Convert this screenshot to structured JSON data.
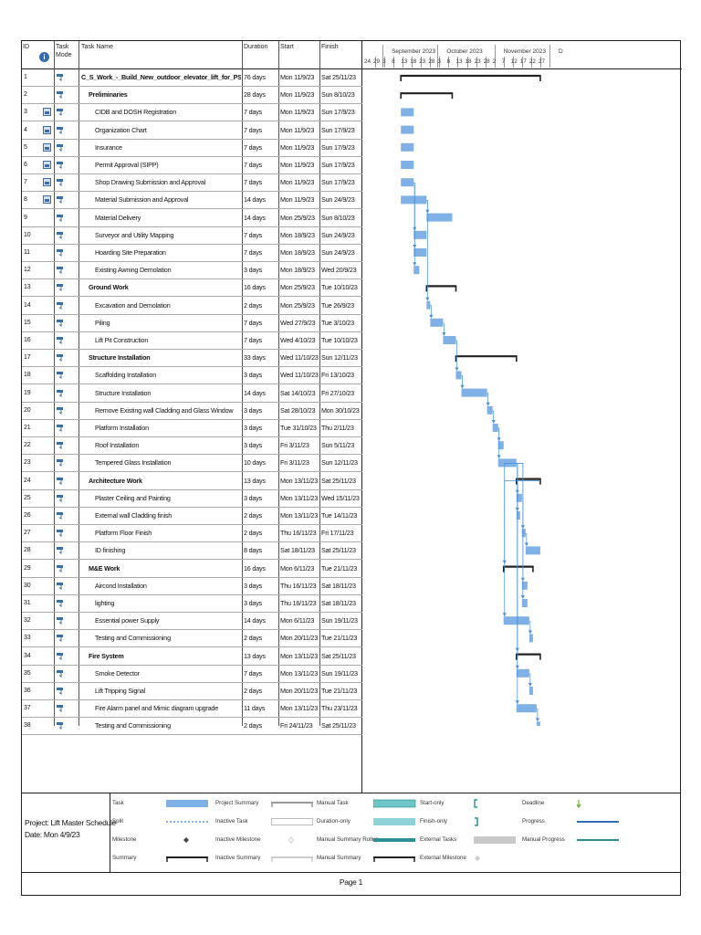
{
  "header": {
    "id": "ID",
    "task_mode": "Task Mode",
    "task_name": "Task Name",
    "duration": "Duration",
    "start": "Start",
    "finish": "Finish"
  },
  "chart_data": {
    "type": "gantt",
    "months": [
      "September 2023",
      "October 2023",
      "November 2023",
      "D"
    ],
    "days": [
      "24",
      "29",
      "3",
      "8",
      "13",
      "18",
      "23",
      "28",
      "3",
      "8",
      "13",
      "18",
      "23",
      "28",
      "2",
      "7",
      "12",
      "17",
      "22",
      "27"
    ],
    "axis_start": "2023-08-24",
    "axis_end": "2023-11-28",
    "tasks": [
      {
        "id": "1",
        "name": "C_S_Work_-_Build_New_outdoor_elevator_lift_for_PSA",
        "duration": "76 days",
        "start": "Mon 11/9/23",
        "finish": "Sat 25/11/23",
        "level": 0,
        "summary": true,
        "cal": false,
        "s": "2023-09-11",
        "f": "2023-11-25"
      },
      {
        "id": "2",
        "name": "Preliminaries",
        "duration": "28 days",
        "start": "Mon 11/9/23",
        "finish": "Sun 8/10/23",
        "level": 1,
        "summary": true,
        "cal": false,
        "s": "2023-09-11",
        "f": "2023-10-08"
      },
      {
        "id": "3",
        "name": "CIDB and DOSH Registration",
        "duration": "7 days",
        "start": "Mon 11/9/23",
        "finish": "Sun 17/9/23",
        "level": 2,
        "summary": false,
        "cal": true,
        "s": "2023-09-11",
        "f": "2023-09-17"
      },
      {
        "id": "4",
        "name": "Organization Chart",
        "duration": "7 days",
        "start": "Mon 11/9/23",
        "finish": "Sun 17/9/23",
        "level": 2,
        "summary": false,
        "cal": true,
        "s": "2023-09-11",
        "f": "2023-09-17"
      },
      {
        "id": "5",
        "name": "Insurance",
        "duration": "7 days",
        "start": "Mon 11/9/23",
        "finish": "Sun 17/9/23",
        "level": 2,
        "summary": false,
        "cal": true,
        "s": "2023-09-11",
        "f": "2023-09-17"
      },
      {
        "id": "6",
        "name": "Permit Approval (SIPP)",
        "duration": "7 days",
        "start": "Mon 11/9/23",
        "finish": "Sun 17/9/23",
        "level": 2,
        "summary": false,
        "cal": true,
        "s": "2023-09-11",
        "f": "2023-09-17"
      },
      {
        "id": "7",
        "name": "Shop Drawing Submission and Approval",
        "duration": "7 days",
        "start": "Mon 11/9/23",
        "finish": "Sun 17/9/23",
        "level": 2,
        "summary": false,
        "cal": true,
        "s": "2023-09-11",
        "f": "2023-09-17"
      },
      {
        "id": "8",
        "name": "Material Submission and Approval",
        "duration": "14 days",
        "start": "Mon 11/9/23",
        "finish": "Sun 24/9/23",
        "level": 2,
        "summary": false,
        "cal": true,
        "s": "2023-09-11",
        "f": "2023-09-24"
      },
      {
        "id": "9",
        "name": "Material Delivery",
        "duration": "14 days",
        "start": "Mon 25/9/23",
        "finish": "Sun 8/10/23",
        "level": 2,
        "summary": false,
        "cal": false,
        "s": "2023-09-25",
        "f": "2023-10-08"
      },
      {
        "id": "10",
        "name": "Surveyor and Utility Mapping",
        "duration": "7 days",
        "start": "Mon 18/9/23",
        "finish": "Sun 24/9/23",
        "level": 2,
        "summary": false,
        "cal": false,
        "s": "2023-09-18",
        "f": "2023-09-24"
      },
      {
        "id": "11",
        "name": "Hoarding Site Preparation",
        "duration": "7 days",
        "start": "Mon 18/9/23",
        "finish": "Sun 24/9/23",
        "level": 2,
        "summary": false,
        "cal": false,
        "s": "2023-09-18",
        "f": "2023-09-24"
      },
      {
        "id": "12",
        "name": "Existing Awning Demolation",
        "duration": "3 days",
        "start": "Mon 18/9/23",
        "finish": "Wed 20/9/23",
        "level": 2,
        "summary": false,
        "cal": false,
        "s": "2023-09-18",
        "f": "2023-09-20"
      },
      {
        "id": "13",
        "name": "Ground Work",
        "duration": "16 days",
        "start": "Mon 25/9/23",
        "finish": "Tue 10/10/23",
        "level": 1,
        "summary": true,
        "cal": false,
        "s": "2023-09-25",
        "f": "2023-10-10"
      },
      {
        "id": "14",
        "name": "Excavation and Demolation",
        "duration": "2 days",
        "start": "Mon 25/9/23",
        "finish": "Tue 26/9/23",
        "level": 2,
        "summary": false,
        "cal": false,
        "s": "2023-09-25",
        "f": "2023-09-26"
      },
      {
        "id": "15",
        "name": "Piling",
        "duration": "7 days",
        "start": "Wed 27/9/23",
        "finish": "Tue 3/10/23",
        "level": 2,
        "summary": false,
        "cal": false,
        "s": "2023-09-27",
        "f": "2023-10-03"
      },
      {
        "id": "16",
        "name": "Lift Pit Construction",
        "duration": "7 days",
        "start": "Wed 4/10/23",
        "finish": "Tue 10/10/23",
        "level": 2,
        "summary": false,
        "cal": false,
        "s": "2023-10-04",
        "f": "2023-10-10"
      },
      {
        "id": "17",
        "name": "Structure Installation",
        "duration": "33 days",
        "start": "Wed 11/10/23",
        "finish": "Sun 12/11/23",
        "level": 1,
        "summary": true,
        "cal": false,
        "s": "2023-10-11",
        "f": "2023-11-12"
      },
      {
        "id": "18",
        "name": "Scaffolding Installation",
        "duration": "3 days",
        "start": "Wed 11/10/23",
        "finish": "Fri 13/10/23",
        "level": 2,
        "summary": false,
        "cal": false,
        "s": "2023-10-11",
        "f": "2023-10-13"
      },
      {
        "id": "19",
        "name": "Structure Installation",
        "duration": "14 days",
        "start": "Sat 14/10/23",
        "finish": "Fri 27/10/23",
        "level": 2,
        "summary": false,
        "cal": false,
        "s": "2023-10-14",
        "f": "2023-10-27"
      },
      {
        "id": "20",
        "name": "Remove Existing wall Cladding and Glass Window",
        "duration": "3 days",
        "start": "Sat 28/10/23",
        "finish": "Mon 30/10/23",
        "level": 2,
        "summary": false,
        "cal": false,
        "s": "2023-10-28",
        "f": "2023-10-30"
      },
      {
        "id": "21",
        "name": "Platform Installation",
        "duration": "3 days",
        "start": "Tue 31/10/23",
        "finish": "Thu 2/11/23",
        "level": 2,
        "summary": false,
        "cal": false,
        "s": "2023-10-31",
        "f": "2023-11-02"
      },
      {
        "id": "22",
        "name": "Roof Installation",
        "duration": "3 days",
        "start": "Fri 3/11/23",
        "finish": "Sun 5/11/23",
        "level": 2,
        "summary": false,
        "cal": false,
        "s": "2023-11-03",
        "f": "2023-11-05"
      },
      {
        "id": "23",
        "name": "Tempered Glass Installation",
        "duration": "10 days",
        "start": "Fri 3/11/23",
        "finish": "Sun 12/11/23",
        "level": 2,
        "summary": false,
        "cal": false,
        "s": "2023-11-03",
        "f": "2023-11-12"
      },
      {
        "id": "24",
        "name": "Architecture Work",
        "duration": "13 days",
        "start": "Mon 13/11/23",
        "finish": "Sat 25/11/23",
        "level": 1,
        "summary": true,
        "cal": false,
        "s": "2023-11-13",
        "f": "2023-11-25"
      },
      {
        "id": "25",
        "name": "Plaster Ceiling and Painting",
        "duration": "3 days",
        "start": "Mon 13/11/23",
        "finish": "Wed 15/11/23",
        "level": 2,
        "summary": false,
        "cal": false,
        "s": "2023-11-13",
        "f": "2023-11-15"
      },
      {
        "id": "26",
        "name": "External wall Cladding finish",
        "duration": "2 days",
        "start": "Mon 13/11/23",
        "finish": "Tue 14/11/23",
        "level": 2,
        "summary": false,
        "cal": false,
        "s": "2023-11-13",
        "f": "2023-11-14"
      },
      {
        "id": "27",
        "name": "Platform Floor Finish",
        "duration": "2 days",
        "start": "Thu 16/11/23",
        "finish": "Fri 17/11/23",
        "level": 2,
        "summary": false,
        "cal": false,
        "s": "2023-11-16",
        "f": "2023-11-17"
      },
      {
        "id": "28",
        "name": "ID finishing",
        "duration": "8 days",
        "start": "Sat 18/11/23",
        "finish": "Sat 25/11/23",
        "level": 2,
        "summary": false,
        "cal": false,
        "s": "2023-11-18",
        "f": "2023-11-25"
      },
      {
        "id": "29",
        "name": "M&E Work",
        "duration": "16 days",
        "start": "Mon 6/11/23",
        "finish": "Tue 21/11/23",
        "level": 1,
        "summary": true,
        "cal": false,
        "s": "2023-11-06",
        "f": "2023-11-21"
      },
      {
        "id": "30",
        "name": "Aircond Installation",
        "duration": "3 days",
        "start": "Thu 16/11/23",
        "finish": "Sat 18/11/23",
        "level": 2,
        "summary": false,
        "cal": false,
        "s": "2023-11-16",
        "f": "2023-11-18"
      },
      {
        "id": "31",
        "name": "lighting",
        "duration": "3 days",
        "start": "Thu 16/11/23",
        "finish": "Sat 18/11/23",
        "level": 2,
        "summary": false,
        "cal": false,
        "s": "2023-11-16",
        "f": "2023-11-18"
      },
      {
        "id": "32",
        "name": "Essential power Supply",
        "duration": "14 days",
        "start": "Mon 6/11/23",
        "finish": "Sun 19/11/23",
        "level": 2,
        "summary": false,
        "cal": false,
        "s": "2023-11-06",
        "f": "2023-11-19"
      },
      {
        "id": "33",
        "name": "Testing and Commissioning",
        "duration": "2 days",
        "start": "Mon 20/11/23",
        "finish": "Tue 21/11/23",
        "level": 2,
        "summary": false,
        "cal": false,
        "s": "2023-11-20",
        "f": "2023-11-21"
      },
      {
        "id": "34",
        "name": "Fire System",
        "duration": "13 days",
        "start": "Mon 13/11/23",
        "finish": "Sat 25/11/23",
        "level": 1,
        "summary": true,
        "cal": false,
        "s": "2023-11-13",
        "f": "2023-11-25"
      },
      {
        "id": "35",
        "name": "Smoke Detector",
        "duration": "7 days",
        "start": "Mon 13/11/23",
        "finish": "Sun 19/11/23",
        "level": 2,
        "summary": false,
        "cal": false,
        "s": "2023-11-13",
        "f": "2023-11-19"
      },
      {
        "id": "36",
        "name": "Lift Tripping Signal",
        "duration": "2 days",
        "start": "Mon 20/11/23",
        "finish": "Tue 21/11/23",
        "level": 2,
        "summary": false,
        "cal": false,
        "s": "2023-11-20",
        "f": "2023-11-21"
      },
      {
        "id": "37",
        "name": "Fire Alarm panel and Mimic diagram upgrade",
        "duration": "11 days",
        "start": "Mon 13/11/23",
        "finish": "Thu 23/11/23",
        "level": 2,
        "summary": false,
        "cal": false,
        "s": "2023-11-13",
        "f": "2023-11-23"
      },
      {
        "id": "38",
        "name": "Testing and Commissioning",
        "duration": "2 days",
        "start": "Fri 24/11/23",
        "finish": "Sat 25/11/23",
        "level": 2,
        "summary": false,
        "cal": false,
        "s": "2023-11-24",
        "f": "2023-11-25"
      }
    ]
  },
  "legend": {
    "project": "Project: Lift Master Schedule",
    "date": "Date: Mon 4/9/23",
    "items": [
      {
        "label": "Task",
        "sym": "task"
      },
      {
        "label": "Split",
        "sym": "split"
      },
      {
        "label": "Milestone",
        "sym": "milestone"
      },
      {
        "label": "Summary",
        "sym": "summary"
      },
      {
        "label": "Project Summary",
        "sym": "projsummary"
      },
      {
        "label": "Inactive Task",
        "sym": "inactivetask"
      },
      {
        "label": "Inactive Milestone",
        "sym": "inactivemilestone"
      },
      {
        "label": "Inactive Summary",
        "sym": "inactivesummary"
      },
      {
        "label": "Manual Task",
        "sym": "manualtask"
      },
      {
        "label": "Duration-only",
        "sym": "durationonly"
      },
      {
        "label": "Manual Summary Rollup",
        "sym": "manualrollup"
      },
      {
        "label": "Manual Summary",
        "sym": "manualsummary"
      },
      {
        "label": "Start-only",
        "sym": "startonly"
      },
      {
        "label": "Finish-only",
        "sym": "finishonly"
      },
      {
        "label": "External Tasks",
        "sym": "external"
      },
      {
        "label": "External Milestone",
        "sym": "extmilestone"
      },
      {
        "label": "Deadline",
        "sym": "deadline"
      },
      {
        "label": "Progress",
        "sym": "progress"
      },
      {
        "label": "Manual Progress",
        "sym": "manualprogress"
      }
    ]
  },
  "footer": {
    "page": "Page 1"
  },
  "colors": {
    "bar": "#7fb1e6",
    "summary": "#222222",
    "link": "#4a8fd6"
  }
}
